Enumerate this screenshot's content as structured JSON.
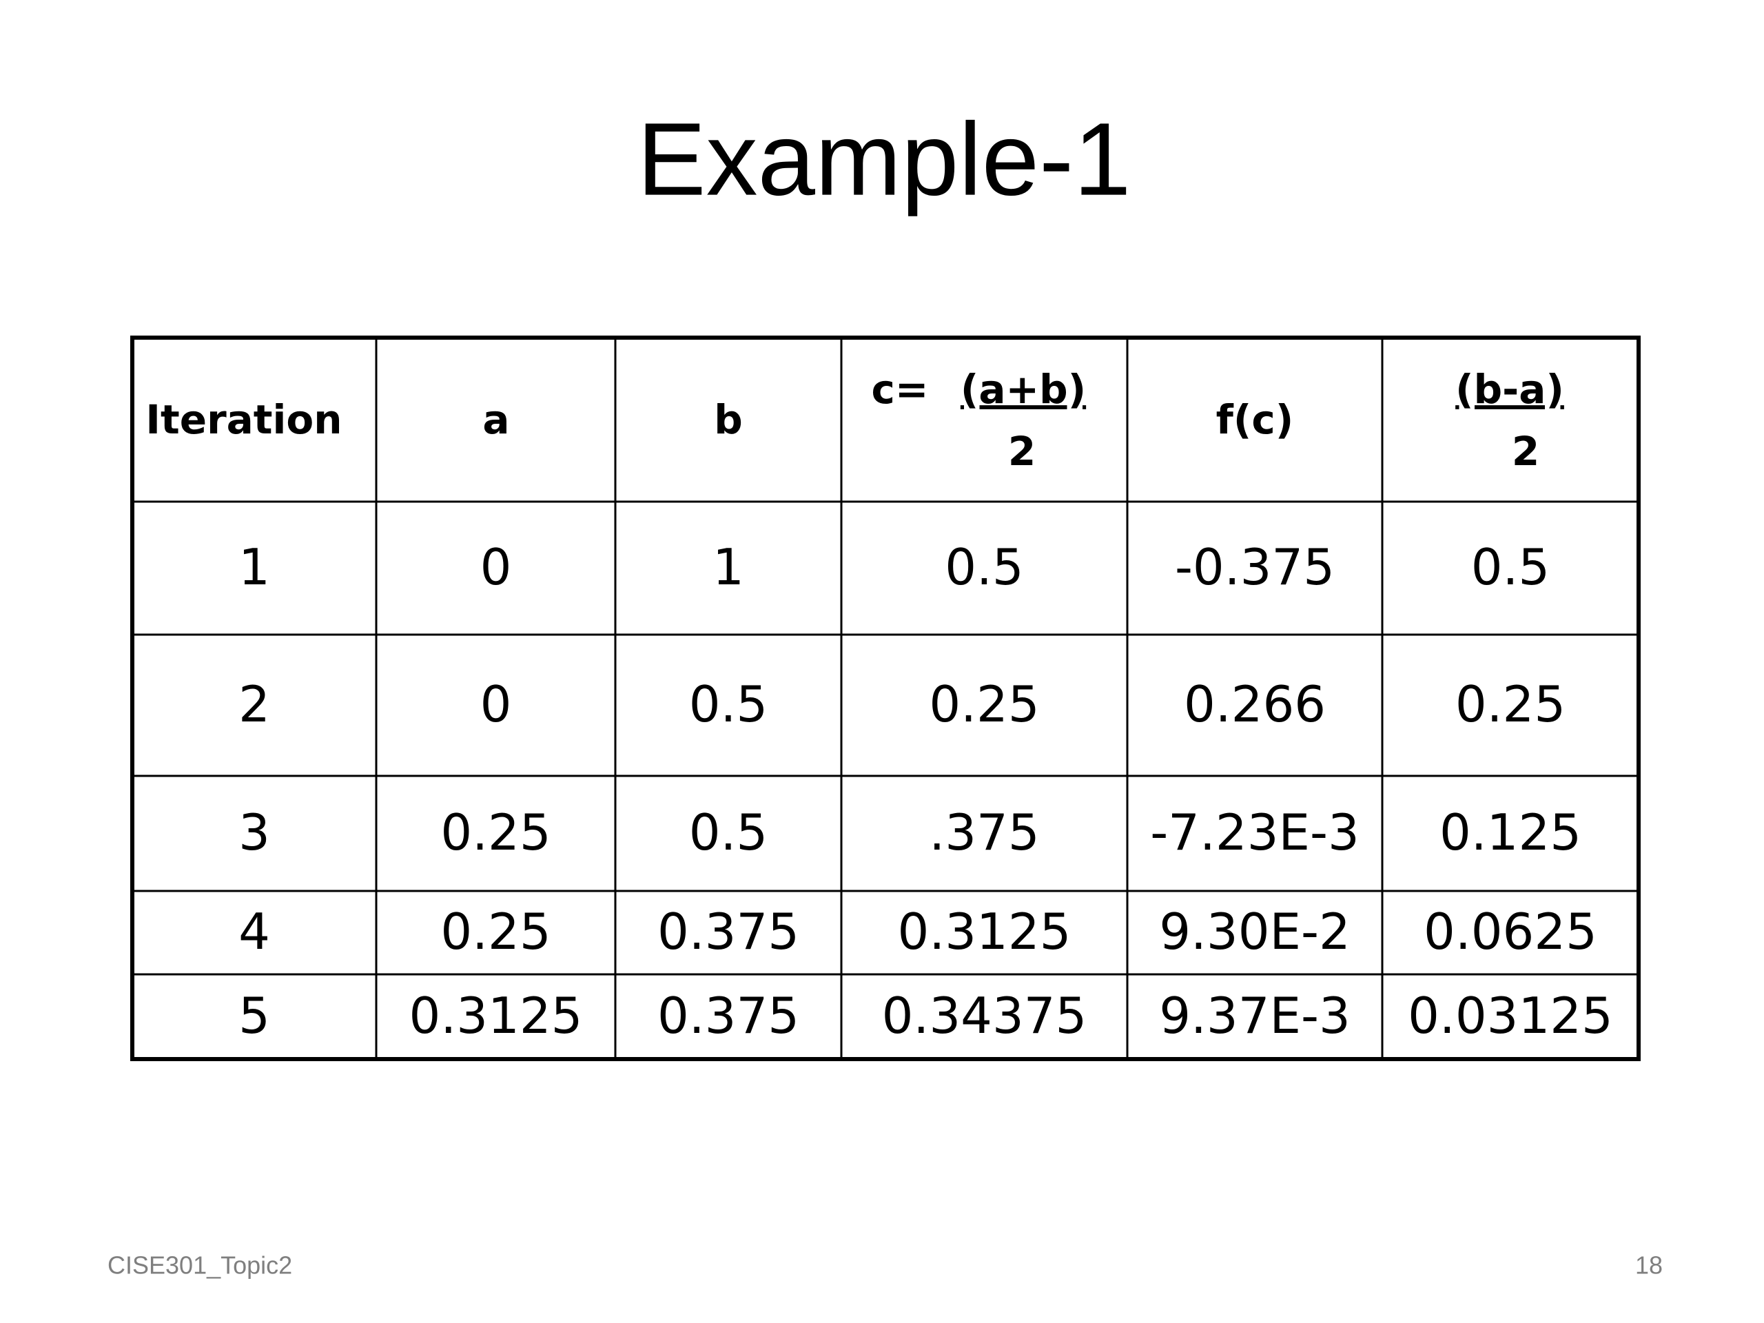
{
  "title": "Example-1",
  "table": {
    "header": {
      "iteration": "Iteration",
      "a": "a",
      "b": "b",
      "c": {
        "prefix": "c=",
        "numerator": "(a+b)",
        "denominator": "2"
      },
      "fc": "f(c)",
      "half": {
        "numerator": "(b-a)",
        "denominator": "2"
      }
    },
    "rows": [
      [
        "1",
        "0",
        "1",
        "0.5",
        "-0.375",
        "0.5"
      ],
      [
        "2",
        "0",
        "0.5",
        "0.25",
        "0.266",
        "0.25"
      ],
      [
        "3",
        "0.25",
        "0.5",
        ".375",
        "-7.23E-3",
        "0.125"
      ],
      [
        "4",
        "0.25",
        "0.375",
        "0.3125",
        "9.30E-2",
        "0.0625"
      ],
      [
        "5",
        "0.3125",
        "0.375",
        "0.34375",
        "9.37E-3",
        "0.03125"
      ]
    ]
  },
  "footer": {
    "left": "CISE301_Topic2",
    "right": "18"
  }
}
